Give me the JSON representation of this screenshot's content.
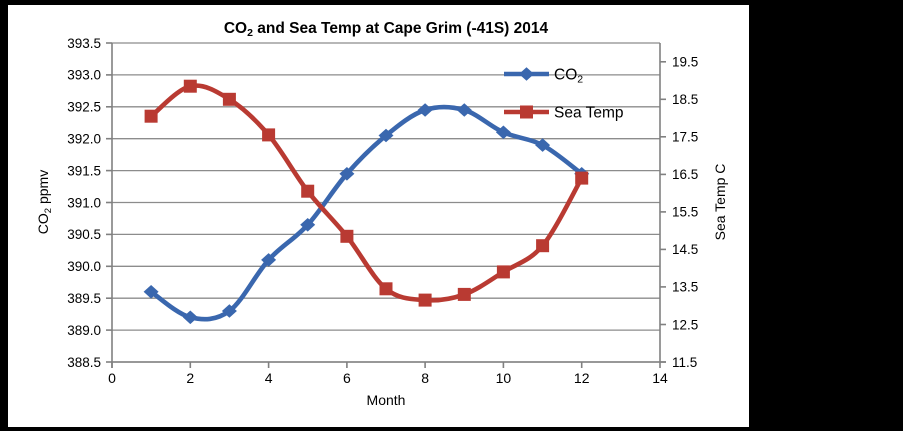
{
  "page": {
    "background": "#000000",
    "figure_background": "#ffffff"
  },
  "title": {
    "text": "CO2 and Sea Temp at Cape Grim (-41S) 2014",
    "pre": "CO",
    "sub": "2",
    "post": " and Sea Temp at Cape Grim (-41S) 2014"
  },
  "chart_data": {
    "type": "line",
    "title": "CO2 and Sea Temp at Cape Grim (-41S) 2014",
    "x": [
      1,
      2,
      3,
      4,
      5,
      6,
      7,
      8,
      9,
      10,
      11,
      12
    ],
    "series": [
      {
        "name": "CO2",
        "axis": "left",
        "color": "#3A67AE",
        "marker": "diamond",
        "values": [
          389.6,
          389.2,
          389.3,
          390.1,
          390.65,
          391.45,
          392.05,
          392.45,
          392.45,
          392.1,
          391.9,
          391.45
        ]
      },
      {
        "name": "Sea Temp",
        "axis": "right",
        "color": "#B93A32",
        "marker": "square",
        "values": [
          18.05,
          18.85,
          18.5,
          17.55,
          16.05,
          14.85,
          13.45,
          13.15,
          13.3,
          13.9,
          14.6,
          16.4
        ]
      }
    ],
    "x_axis": {
      "label": "Month",
      "min": 0,
      "max": 14,
      "tick_step": 2,
      "ticks": [
        0,
        2,
        4,
        6,
        8,
        10,
        12,
        14
      ],
      "tick_labels": [
        "0",
        "2",
        "4",
        "6",
        "8",
        "10",
        "12",
        "14"
      ]
    },
    "left_axis": {
      "label": "CO2 ppmv",
      "label_pre": "CO",
      "label_sub": "2",
      "label_post": " ppmv",
      "min": 388.5,
      "max": 393.5,
      "tick_step": 0.5,
      "ticks": [
        393.5,
        393.0,
        392.5,
        392.0,
        391.5,
        391.0,
        390.5,
        390.0,
        389.5,
        389.0,
        388.5
      ],
      "tick_labels": [
        "393.5",
        "393.0",
        "392.5",
        "392.0",
        "391.5",
        "391.0",
        "390.5",
        "390.0",
        "389.5",
        "389.0",
        "388.5"
      ]
    },
    "right_axis": {
      "label": "Sea Temp C",
      "min": 11.5,
      "max": 20.0,
      "tick_step": 1.0,
      "ticks": [
        19.5,
        18.5,
        17.5,
        16.5,
        15.5,
        14.5,
        13.5,
        12.5,
        11.5
      ],
      "tick_labels": [
        "19.5",
        "18.5",
        "17.5",
        "16.5",
        "15.5",
        "14.5",
        "13.5",
        "12.5",
        "11.5"
      ]
    },
    "grid": "horizontal-major",
    "legend_position": "inside-top-right"
  },
  "legend": {
    "items": [
      {
        "pre": "CO",
        "sub": "2",
        "post": "",
        "color": "#3A67AE",
        "marker": "diamond"
      },
      {
        "pre": "Sea Temp",
        "sub": "",
        "post": "",
        "color": "#B93A32",
        "marker": "square"
      }
    ]
  },
  "colors": {
    "co2_line": "#3A67AE",
    "sea_temp_line": "#B93A32",
    "gridline": "#8C8C8C",
    "axis_line": "#808080",
    "text": "#000000"
  }
}
